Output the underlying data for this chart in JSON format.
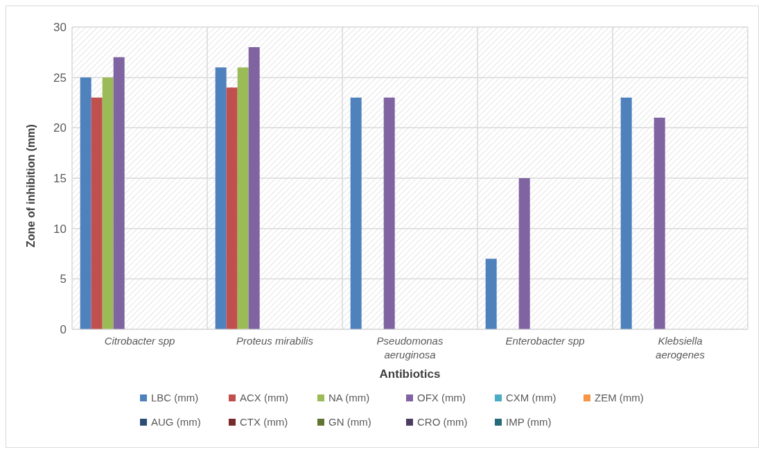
{
  "chart_data": {
    "type": "bar",
    "xlabel": "Antibiotics",
    "ylabel": "Zone of inhibition (mm)",
    "categories": [
      "Citrobacter spp",
      "Proteus mirabilis",
      "Pseudomonas aeruginosa",
      "Enterobacter spp",
      "Klebsiella aerogenes"
    ],
    "series": [
      {
        "name": "LBC (mm)",
        "color": "#4f81bd",
        "values": [
          25,
          26,
          23,
          7,
          23
        ]
      },
      {
        "name": "ACX (mm)",
        "color": "#c0504d",
        "values": [
          23,
          24,
          0,
          0,
          0
        ]
      },
      {
        "name": "NA (mm)",
        "color": "#9bbb59",
        "values": [
          25,
          26,
          0,
          0,
          0
        ]
      },
      {
        "name": "OFX (mm)",
        "color": "#8064a2",
        "values": [
          27,
          28,
          23,
          15,
          21
        ]
      },
      {
        "name": "CXM (mm)",
        "color": "#4bacc6",
        "values": [
          0,
          0,
          0,
          0,
          0
        ]
      },
      {
        "name": "ZEM (mm)",
        "color": "#f79646",
        "values": [
          0,
          0,
          0,
          0,
          0
        ]
      },
      {
        "name": "AUG (mm)",
        "color": "#2c4d75",
        "values": [
          0,
          0,
          0,
          0,
          0
        ]
      },
      {
        "name": "CTX (mm)",
        "color": "#772c2a",
        "values": [
          0,
          0,
          0,
          0,
          0
        ]
      },
      {
        "name": "GN (mm)",
        "color": "#5f7530",
        "values": [
          0,
          0,
          0,
          0,
          0
        ]
      },
      {
        "name": "CRO (mm)",
        "color": "#4d3b62",
        "values": [
          0,
          0,
          0,
          0,
          0
        ]
      },
      {
        "name": "IMP (mm)",
        "color": "#276a7c",
        "values": [
          0,
          0,
          0,
          0,
          0
        ]
      }
    ],
    "ylim": [
      0,
      30
    ],
    "yticks": [
      0,
      5,
      10,
      15,
      20,
      25,
      30
    ],
    "grid": true,
    "legend": "bottom"
  }
}
